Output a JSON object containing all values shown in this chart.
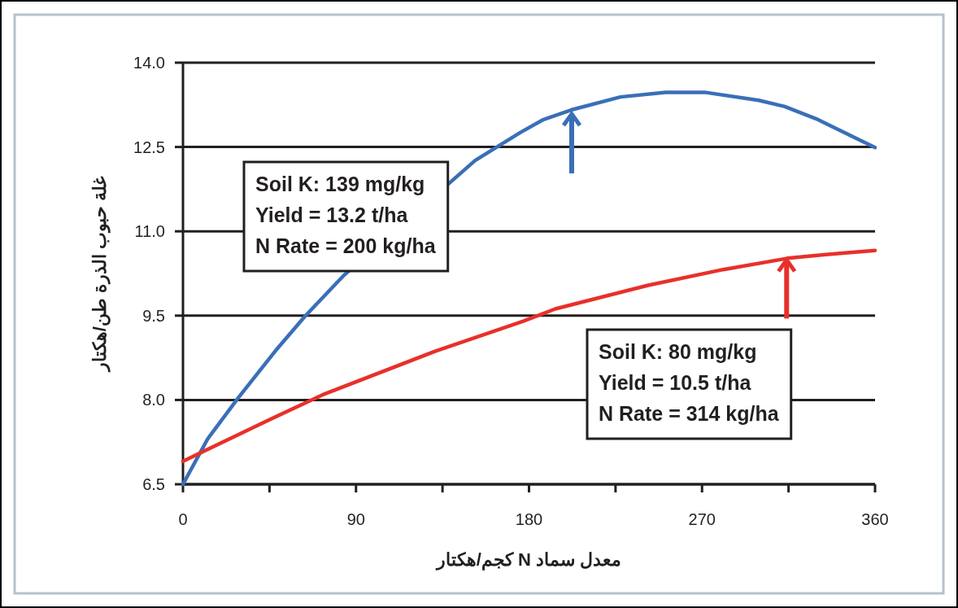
{
  "chart_data": {
    "type": "line",
    "xlabel": "معدل سماد N كجم/هكتار",
    "ylabel": "غلة حبوب الذرة طن/هكتار",
    "xlim": [
      0,
      360
    ],
    "xticks": [
      0,
      {
        "value": 45,
        "label": null
      },
      90,
      {
        "value": 135,
        "label": null
      },
      180,
      {
        "value": 225,
        "label": null
      },
      270,
      {
        "value": 315,
        "label": null
      },
      360
    ],
    "ylim": [
      6.5,
      14.0
    ],
    "yticks": [
      {
        "value": 6.5,
        "label": "6.5"
      },
      {
        "value": 8.0,
        "label": "8.0"
      },
      {
        "value": 9.5,
        "label": "9.5"
      },
      {
        "value": 11.0,
        "label": "11.0"
      },
      {
        "value": 12.5,
        "label": "12.5"
      },
      {
        "value": 14.0,
        "label": "14.0"
      }
    ],
    "grid": "y",
    "marker": "none",
    "line_style": "solid",
    "series": [
      {
        "color": "#3a6fb7",
        "x": [
          0,
          12.7,
          28.8,
          48,
          63.5,
          83.8,
          152,
          175.6,
          187.6,
          202,
          227.6,
          251,
          272,
          299.5,
          313,
          329.5,
          360
        ],
        "values": [
          6.5,
          7.3,
          8.04,
          8.87,
          9.49,
          10.22,
          12.26,
          12.76,
          12.99,
          13.16,
          13.39,
          13.47,
          13.47,
          13.33,
          13.22,
          13.0,
          12.49
        ]
      },
      {
        "color": "#e8302a",
        "x": [
          0,
          43.8,
          72.5,
          131.4,
          177,
          193.7,
          242,
          281,
          314.5,
          341.8,
          360
        ],
        "values": [
          6.91,
          7.63,
          8.09,
          8.87,
          9.4,
          9.62,
          10.04,
          10.32,
          10.52,
          10.61,
          10.66
        ]
      }
    ],
    "annotations": [
      "Soil K: 139 mg/kg\nYield = 13.2 t/ha\nN Rate = 200 kg/ha",
      {
        "text": "Soil K: 80 mg/kg\nYield = 10.5 t/ha\nN Rate = 314 kg/ha",
        "x": 314,
        "y": 10.52
      }
    ]
  }
}
